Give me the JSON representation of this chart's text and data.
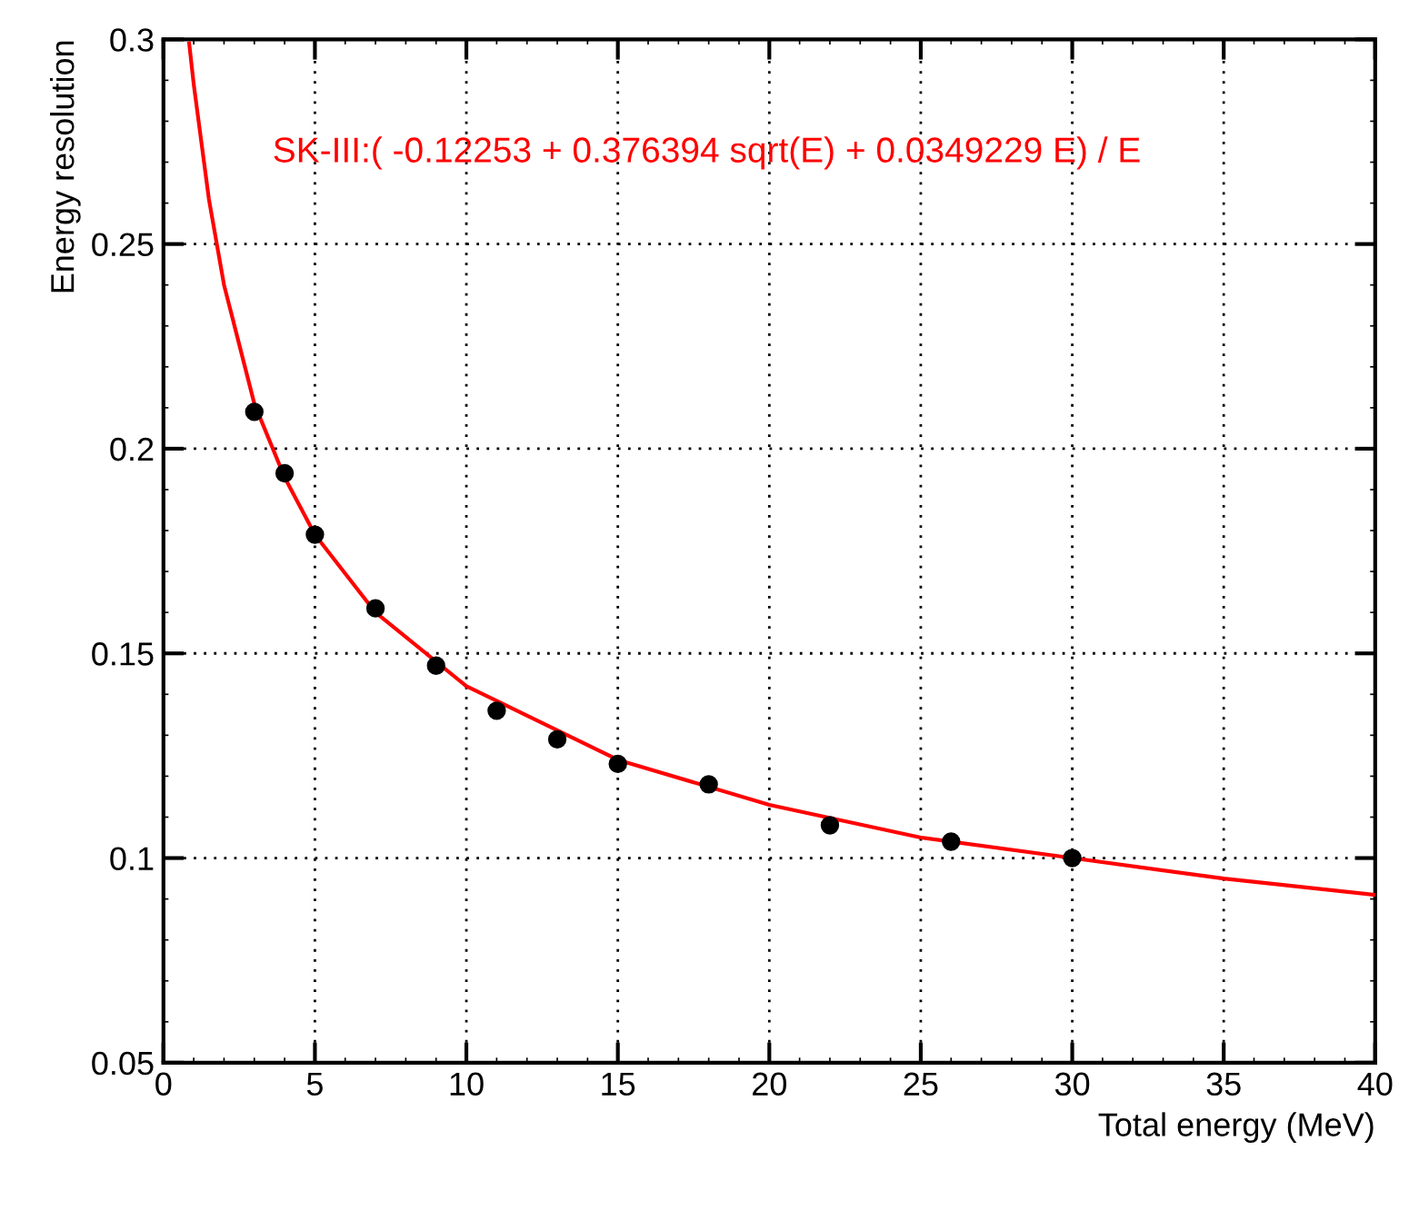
{
  "chart_data": {
    "type": "scatter",
    "xlabel": "Total energy (MeV)",
    "ylabel": "Energy resolution",
    "annotations": [
      "SK-III:( -0.12253 + 0.376394 sqrt(E) + 0.0349229 E) / E"
    ],
    "series": [
      {
        "color": "#000000",
        "marker": "circle",
        "x": [
          3,
          4,
          5,
          7,
          9,
          11,
          13,
          15,
          18,
          22,
          26,
          30
        ],
        "values": [
          0.209,
          0.194,
          0.179,
          0.161,
          0.147,
          0.136,
          0.129,
          0.123,
          0.118,
          0.108,
          0.104,
          0.1
        ]
      },
      {
        "type": "line",
        "color": "#ff0000",
        "marker": "none",
        "x": [
          0.85,
          1,
          1.5,
          2,
          3,
          4,
          5,
          7,
          10,
          15,
          20,
          25,
          30,
          35,
          40
        ],
        "values": [
          0.299,
          0.289,
          0.261,
          0.24,
          0.211,
          0.193,
          0.179,
          0.16,
          0.142,
          0.124,
          0.113,
          0.105,
          0.1,
          0.095,
          0.091
        ]
      }
    ],
    "xlim": [
      0,
      40
    ],
    "ylim": [
      0.05,
      0.3
    ],
    "xticks": [
      0,
      5,
      10,
      15,
      20,
      25,
      30,
      35,
      40
    ],
    "yticks": [
      0.05,
      0.1,
      0.15,
      0.2,
      0.25,
      0.3
    ],
    "grid": true
  }
}
